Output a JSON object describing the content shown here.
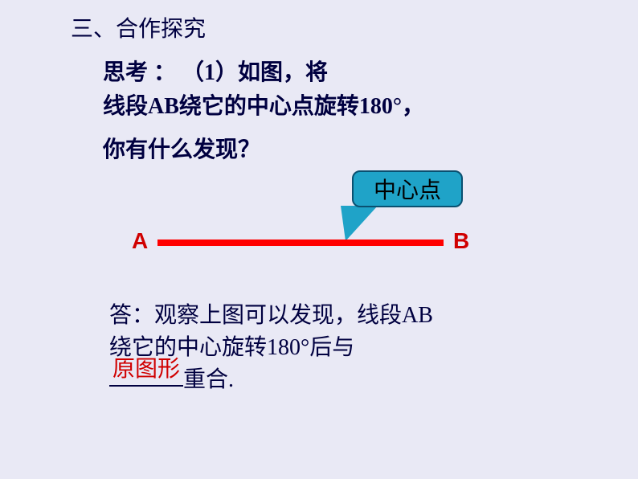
{
  "section_title": "三、合作探究",
  "think": {
    "line1": "思考 ：  （1）如图，将",
    "line2": "线段AB绕它的中心点旋转180°，",
    "line3": "你有什么发现？"
  },
  "diagram": {
    "callout_label": "中心点",
    "point_a": "A",
    "point_b": "B",
    "line_color": "#ff0000",
    "callout_bg": "#1fa3c8",
    "callout_border": "#0a5070"
  },
  "answer": {
    "line1": "答：观察上图可以发现，线段AB",
    "line2": "绕它的中心旋转180°后与",
    "blank_fill": "原图形",
    "line3_suffix": "重合."
  },
  "colors": {
    "background": "#e9e9f5",
    "text": "#000040",
    "accent_red": "#d00000"
  }
}
